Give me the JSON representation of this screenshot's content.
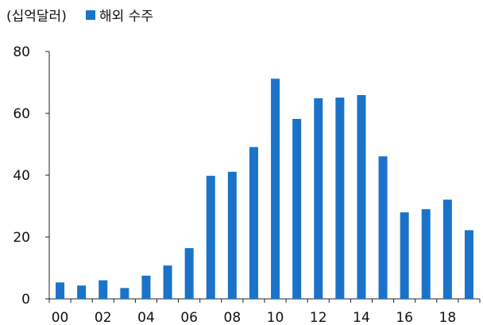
{
  "chart_data": {
    "type": "bar",
    "unit_label": "(십억달러)",
    "series": [
      {
        "name": "해외 수주",
        "color": "#1a73c8",
        "values": [
          5.3,
          4.3,
          6.0,
          3.5,
          7.5,
          10.8,
          16.4,
          39.8,
          41.1,
          49.1,
          71.2,
          58.2,
          64.9,
          65.1,
          65.9,
          46.1,
          28.0,
          29.0,
          32.1,
          22.2
        ]
      }
    ],
    "x": [
      2000,
      2001,
      2002,
      2003,
      2004,
      2005,
      2006,
      2007,
      2008,
      2009,
      2010,
      2011,
      2012,
      2013,
      2014,
      2015,
      2016,
      2017,
      2018,
      2019
    ],
    "x_tick_labels": [
      "00",
      "02",
      "04",
      "06",
      "08",
      "10",
      "12",
      "14",
      "16",
      "18"
    ],
    "y_tick_labels": [
      "0",
      "20",
      "40",
      "60",
      "80"
    ],
    "ylim": [
      0,
      80
    ],
    "grid": false,
    "legend_position": "top-left"
  }
}
